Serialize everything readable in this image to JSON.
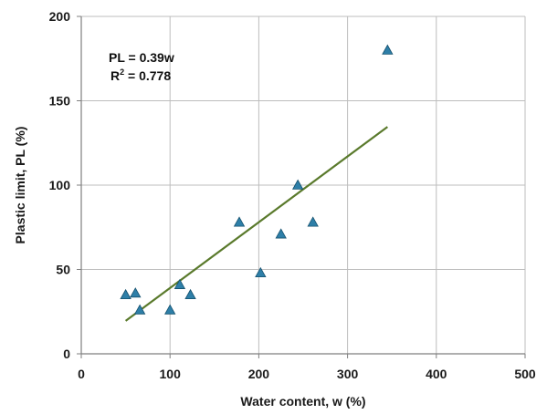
{
  "chart_data": {
    "type": "scatter",
    "xlabel": "Water content, w (%)",
    "ylabel": "Plastic limit, PL (%)",
    "xlim": [
      0,
      500
    ],
    "ylim": [
      0,
      200
    ],
    "x_ticks": [
      "0",
      "100",
      "200",
      "300",
      "400",
      "500"
    ],
    "y_ticks": [
      "0",
      "50",
      "100",
      "150",
      "200"
    ],
    "grid": true,
    "series": [
      {
        "points": [
          {
            "x": 50,
            "y": 35
          },
          {
            "x": 61,
            "y": 36
          },
          {
            "x": 66,
            "y": 26
          },
          {
            "x": 100,
            "y": 26
          },
          {
            "x": 111,
            "y": 41
          },
          {
            "x": 123,
            "y": 35
          },
          {
            "x": 178,
            "y": 78
          },
          {
            "x": 202,
            "y": 48
          },
          {
            "x": 225,
            "y": 71
          },
          {
            "x": 244,
            "y": 100
          },
          {
            "x": 261,
            "y": 78
          },
          {
            "x": 345,
            "y": 180
          }
        ]
      }
    ],
    "trendline": {
      "slope": 0.39,
      "x_start": 50,
      "x_end": 345
    },
    "annotations": {
      "equation": "PL = 0.39w",
      "r2_prefix": "R",
      "r2_sup": "2",
      "r2_value": " = 0.778"
    },
    "colors": {
      "marker_fill": "#2e7fa8",
      "marker_stroke": "#14506e",
      "trendline": "#5a7a2c",
      "grid": "#bdbdbd",
      "axis": "#7f7f7f"
    }
  }
}
